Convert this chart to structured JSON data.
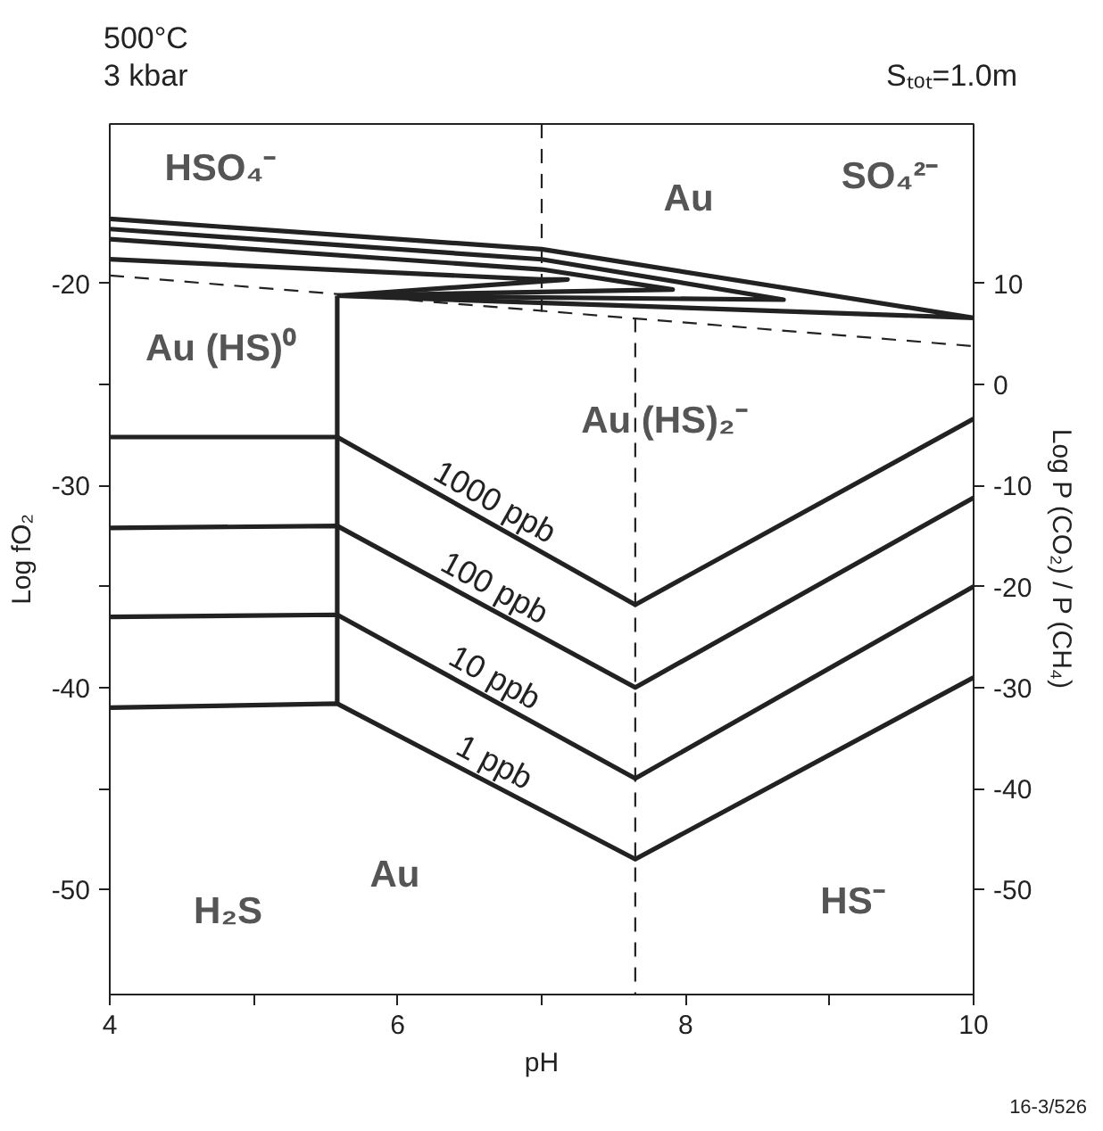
{
  "chart_data": {
    "type": "line",
    "title": "500°C",
    "subtitle": "3 kbar",
    "xlabel": "pH",
    "ylabel": "Log fO₂",
    "y2label": "Log P (CO₂) / P (CH₄)",
    "xlim": [
      4,
      10
    ],
    "ylim": [
      -55.2,
      -12.1
    ],
    "y2lim": [
      -60.4,
      25.8
    ],
    "xticks": [
      4,
      {
        "value": 5,
        "label": null
      },
      6,
      {
        "value": 7,
        "label": null
      },
      8,
      {
        "value": 9,
        "label": null
      },
      10
    ],
    "yticks": [
      -20,
      {
        "value": -25,
        "label": null
      },
      -30,
      {
        "value": -35,
        "label": null
      },
      -40,
      {
        "value": -45,
        "label": null
      },
      -50
    ],
    "y2ticks": [
      10,
      0,
      -10,
      -20,
      -30,
      -40,
      -50
    ],
    "grid": false,
    "marker": "none",
    "line_style": "solid",
    "series": [
      {
        "name": "1000 ppb",
        "color": "#222222",
        "x": [
          4,
          5.58,
          7.65,
          10
        ],
        "values": [
          -27.6,
          -27.6,
          -35.9,
          -26.7
        ]
      },
      {
        "name": "100 ppb",
        "color": "#222222",
        "x": [
          4,
          5.58,
          7.65,
          10
        ],
        "values": [
          -32.1,
          -32.0,
          -40.0,
          -30.6
        ]
      },
      {
        "name": "10 ppb",
        "color": "#222222",
        "x": [
          4,
          5.58,
          7.65,
          10
        ],
        "values": [
          -36.5,
          -36.4,
          -44.5,
          -35.0
        ]
      },
      {
        "name": "1 ppb",
        "color": "#222222",
        "x": [
          4,
          5.58,
          7.65,
          10
        ],
        "values": [
          -41.0,
          -40.8,
          -48.5,
          -39.5
        ]
      },
      {
        "color": "#222222",
        "x": [
          5.58,
          5.58
        ],
        "values": [
          -20.6,
          -40.8
        ]
      },
      {
        "color": "#222222",
        "x": [
          4,
          7,
          10,
          5.58
        ],
        "values": [
          -16.8,
          -18.3,
          -21.7,
          -20.6
        ]
      },
      {
        "color": "#222222",
        "x": [
          4,
          7,
          8.68,
          5.58
        ],
        "values": [
          -17.3,
          -18.8,
          -20.8,
          -20.6
        ]
      },
      {
        "color": "#222222",
        "x": [
          4,
          7,
          7.91,
          5.58
        ],
        "values": [
          -17.8,
          -19.3,
          -20.3,
          -20.6
        ]
      },
      {
        "color": "#222222",
        "x": [
          4,
          7,
          7.18,
          5.58
        ],
        "values": [
          -18.8,
          -19.8,
          -19.8,
          -20.6
        ]
      },
      {
        "color": "#222222",
        "line_style": "dashed",
        "x": [
          4,
          10
        ],
        "values": [
          -19.6,
          -23.1
        ]
      },
      {
        "color": "#222222",
        "line_style": "dashed",
        "x": [
          7,
          7
        ],
        "values": [
          -12.1,
          -21.4
        ]
      },
      {
        "color": "#222222",
        "line_style": "dashed",
        "x": [
          7.65,
          7.65
        ],
        "values": [
          -21.7,
          -55.2
        ]
      }
    ],
    "annotations": [
      "Sₜₒₜ=1.0m",
      "16-3/526",
      "HSO₄⁻",
      "SO₄²⁻",
      "Au",
      "Au (HS)⁰",
      "Au (HS)₂⁻",
      "H₂S",
      "Au",
      "HS⁻"
    ]
  }
}
